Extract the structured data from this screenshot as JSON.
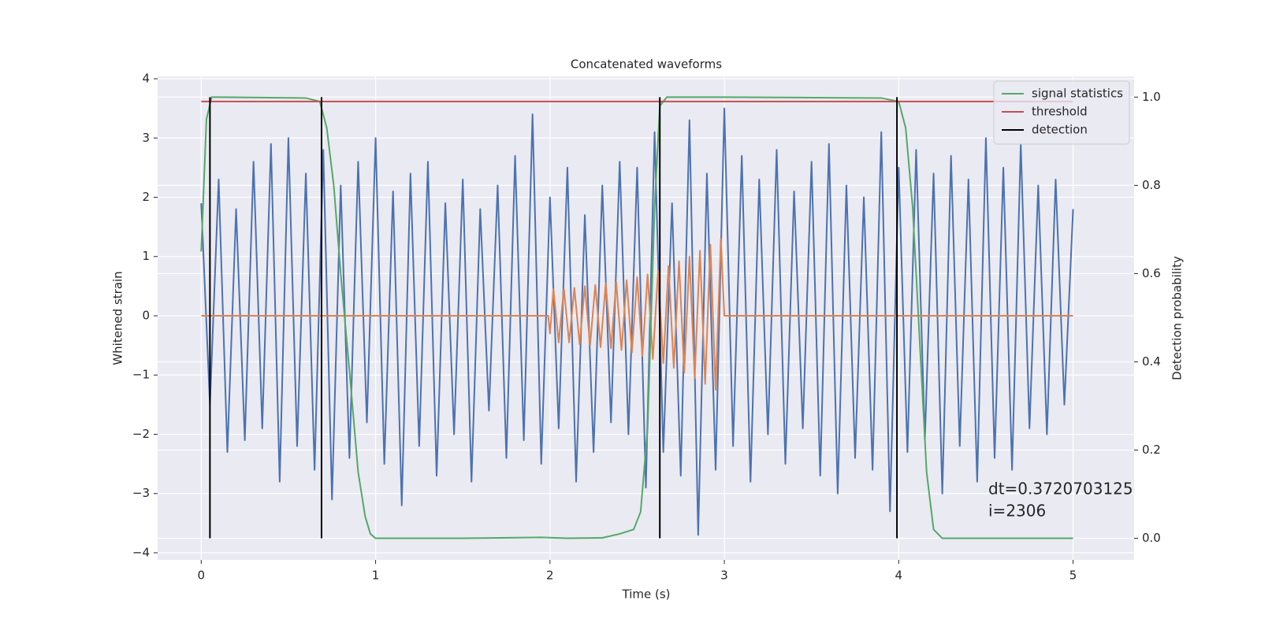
{
  "chart_data": {
    "type": "line",
    "title": "Concatenated waveforms",
    "x_label": "Time (s)",
    "y_label": "Whitened strain",
    "y2_label": "Detection probability",
    "xlim": [
      -0.25,
      5.35
    ],
    "ylim": [
      -4.12,
      4.04
    ],
    "y2lim": [
      -0.049,
      1.047
    ],
    "xticks": [
      0,
      1,
      2,
      3,
      4,
      5
    ],
    "yticks": [
      {
        "value": -4,
        "label": "−4"
      },
      {
        "value": -3,
        "label": "−3"
      },
      {
        "value": -2,
        "label": "−2"
      },
      {
        "value": -1,
        "label": "−1"
      },
      0,
      1,
      2,
      3,
      4
    ],
    "y2ticks": [
      {
        "value": 0,
        "label": "0.0"
      },
      0.2,
      0.4,
      0.6,
      0.8,
      {
        "value": 1,
        "label": "1.0"
      }
    ],
    "grid": true,
    "legend": "upper right",
    "annotation": [
      "dt=0.3720703125",
      " i=2306"
    ],
    "series": [
      {
        "color": "#4c72b0",
        "x": [
          0,
          0.05,
          0.1,
          0.15,
          0.2,
          0.25,
          0.3,
          0.35,
          0.4,
          0.45,
          0.5,
          0.55,
          0.6,
          0.65,
          0.7,
          0.75,
          0.8,
          0.85,
          0.9,
          0.95,
          1,
          1.05,
          1.1,
          1.15,
          1.2,
          1.25,
          1.3,
          1.35,
          1.4,
          1.45,
          1.5,
          1.55,
          1.6,
          1.65,
          1.7,
          1.75,
          1.8,
          1.85,
          1.9,
          1.95,
          2,
          2.05,
          2.1,
          2.15,
          2.2,
          2.25,
          2.3,
          2.35,
          2.4,
          2.45,
          2.5,
          2.55,
          2.6,
          2.65,
          2.7,
          2.75,
          2.8,
          2.85,
          2.9,
          2.95,
          3,
          3.05,
          3.1,
          3.15,
          3.2,
          3.25,
          3.3,
          3.35,
          3.4,
          3.45,
          3.5,
          3.55,
          3.6,
          3.65,
          3.7,
          3.75,
          3.8,
          3.85,
          3.9,
          3.95,
          4,
          4.05,
          4.1,
          4.15,
          4.2,
          4.25,
          4.3,
          4.35,
          4.4,
          4.45,
          4.5,
          4.55,
          4.6,
          4.65,
          4.7,
          4.75,
          4.8,
          4.85,
          4.9,
          4.95,
          5
        ],
        "values": [
          1.9,
          -1.5,
          2.3,
          -2.3,
          1.8,
          -2.1,
          2.6,
          -1.9,
          2.9,
          -2.8,
          3.0,
          -2.2,
          2.4,
          -2.6,
          2.8,
          -3.1,
          2.2,
          -2.4,
          2.6,
          -1.8,
          3.0,
          -2.5,
          2.1,
          -3.2,
          2.4,
          -2.2,
          2.6,
          -2.7,
          1.9,
          -2.0,
          2.3,
          -2.8,
          1.8,
          -1.6,
          2.2,
          -2.4,
          2.7,
          -2.1,
          3.4,
          -2.5,
          2.0,
          -1.9,
          2.5,
          -2.8,
          1.7,
          -2.3,
          2.2,
          -1.8,
          2.6,
          -2.0,
          2.5,
          -2.9,
          3.1,
          -2.3,
          1.9,
          -2.7,
          3.3,
          -3.7,
          2.4,
          -2.6,
          3.5,
          -2.2,
          2.7,
          -2.8,
          2.3,
          -2.0,
          2.8,
          -2.5,
          2.1,
          -1.9,
          2.6,
          -2.7,
          2.9,
          -3.0,
          2.2,
          -2.4,
          2.0,
          -2.6,
          3.1,
          -3.3,
          2.5,
          -2.3,
          2.8,
          -2.1,
          2.4,
          -3.0,
          2.7,
          -2.2,
          2.3,
          -2.8,
          3.0,
          -2.4,
          2.5,
          -2.6,
          2.9,
          -1.9,
          2.2,
          -2.0,
          2.3,
          -1.5,
          1.8
        ]
      },
      {
        "color": "#dd8452",
        "x": [
          0,
          1.99,
          2,
          2.02,
          2.05,
          2.08,
          2.11,
          2.14,
          2.17,
          2.2,
          2.23,
          2.26,
          2.29,
          2.32,
          2.35,
          2.38,
          2.41,
          2.44,
          2.47,
          2.5,
          2.53,
          2.56,
          2.59,
          2.62,
          2.65,
          2.68,
          2.71,
          2.74,
          2.77,
          2.8,
          2.83,
          2.86,
          2.89,
          2.92,
          2.95,
          2.98,
          3,
          5
        ],
        "values": [
          0,
          0,
          -0.3,
          0.45,
          -0.45,
          0.45,
          -0.45,
          0.47,
          -0.48,
          0.5,
          -0.5,
          0.52,
          -0.53,
          0.55,
          -0.55,
          0.57,
          -0.58,
          0.6,
          -0.62,
          0.65,
          -0.68,
          0.7,
          -0.73,
          0.76,
          -0.8,
          0.84,
          -0.88,
          0.92,
          -0.96,
          1.0,
          -1.05,
          1.1,
          -1.15,
          1.2,
          -1.25,
          1.3,
          0,
          0
        ]
      },
      {
        "name": "signal statistics",
        "color": "#55a868",
        "axis": "y2",
        "x": [
          0,
          0.03,
          0.06,
          0.1,
          0.6,
          0.68,
          0.72,
          0.76,
          0.8,
          0.85,
          0.9,
          0.94,
          0.97,
          1,
          1.5,
          1.95,
          2.1,
          2.3,
          2.4,
          2.48,
          2.52,
          2.56,
          2.6,
          2.63,
          2.67,
          3,
          3.9,
          4,
          4.04,
          4.08,
          4.12,
          4.16,
          4.2,
          4.25,
          5
        ],
        "values": [
          0.65,
          0.95,
          1.0,
          1.0,
          0.998,
          0.99,
          0.93,
          0.8,
          0.6,
          0.38,
          0.15,
          0.05,
          0.01,
          0.0,
          0.0,
          0.002,
          0.0,
          0.001,
          0.01,
          0.02,
          0.06,
          0.25,
          0.75,
          0.98,
          1.0,
          1.0,
          0.998,
          0.99,
          0.93,
          0.75,
          0.45,
          0.15,
          0.02,
          0.0,
          0.0
        ]
      },
      {
        "name": "threshold",
        "color": "#c44e52",
        "axis": "y2",
        "x": [
          0,
          5
        ],
        "values": [
          0.99,
          0.99
        ]
      },
      {
        "name": "detection",
        "color": "#000000",
        "axis": "y2",
        "drawstyle": "vlines",
        "x": [
          0.05,
          0.69,
          2.63,
          3.99
        ],
        "values": [
          1,
          1,
          1,
          1
        ]
      }
    ]
  }
}
